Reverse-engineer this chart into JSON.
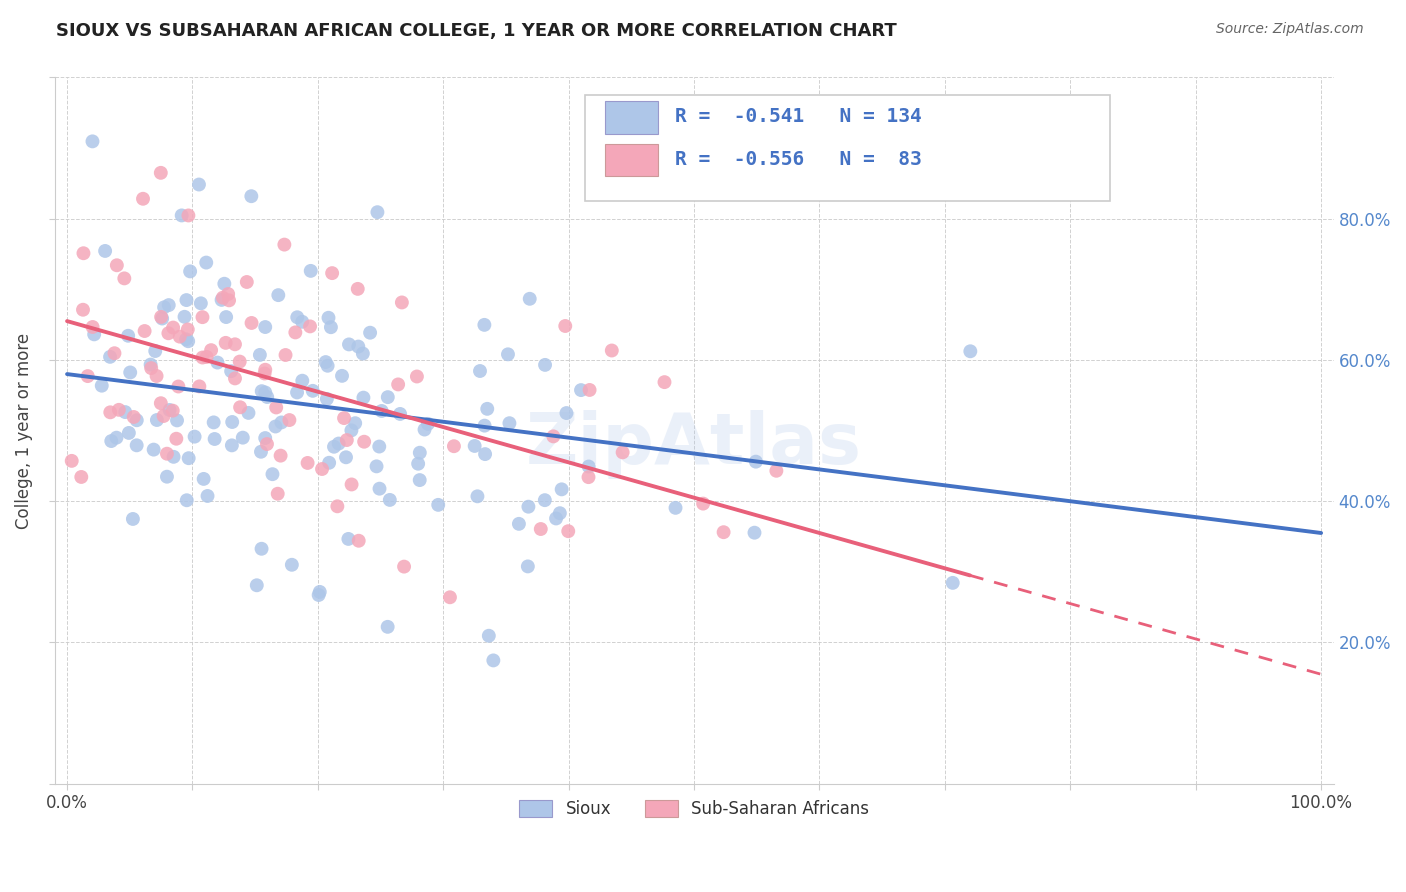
{
  "title": "SIOUX VS SUBSAHARAN AFRICAN COLLEGE, 1 YEAR OR MORE CORRELATION CHART",
  "source": "Source: ZipAtlas.com",
  "ylabel": "College, 1 year or more",
  "sioux_color": "#aec6e8",
  "subsaharan_color": "#f4a7b9",
  "sioux_line_color": "#4472c4",
  "subsaharan_line_color": "#e8607a",
  "watermark": "ZipAtlas",
  "R_sioux": -0.541,
  "N_sioux": 134,
  "R_subsaharan": -0.556,
  "N_subsaharan": 83,
  "sioux_intercept": 0.58,
  "sioux_slope": -0.225,
  "sub_intercept": 0.655,
  "sub_slope": -0.5,
  "legend_text_color": "#4472c4"
}
